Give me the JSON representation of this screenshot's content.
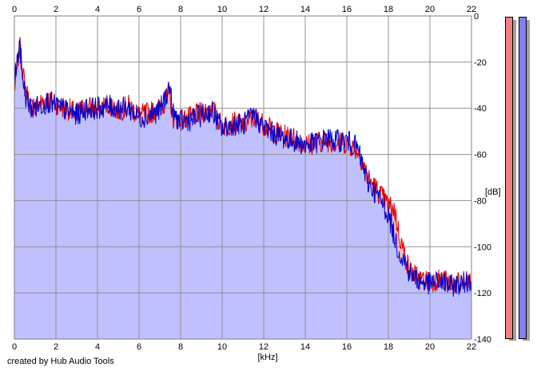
{
  "chart_data": {
    "type": "area",
    "xlabel": "[kHz]",
    "ylabel": "[dB]",
    "xlim": [
      0,
      22
    ],
    "ylim": [
      -140,
      0
    ],
    "x_ticks": [
      "0",
      "2",
      "4",
      "6",
      "8",
      "10",
      "12",
      "14",
      "16",
      "18",
      "20",
      "22"
    ],
    "y_ticks": [
      "0",
      "-20",
      "-40",
      "-60",
      "-80",
      "-100",
      "-120",
      "-140"
    ],
    "grid": true,
    "series": [
      {
        "color": "#e00000",
        "points": [
          [
            0,
            -32
          ],
          [
            0.1,
            -25
          ],
          [
            0.25,
            -14
          ],
          [
            0.5,
            -30
          ],
          [
            0.8,
            -40
          ],
          [
            1.2,
            -38
          ],
          [
            1.6,
            -36
          ],
          [
            2,
            -38
          ],
          [
            2.5,
            -40
          ],
          [
            3,
            -42
          ],
          [
            3.5,
            -39
          ],
          [
            4,
            -41
          ],
          [
            4.5,
            -38
          ],
          [
            5,
            -41
          ],
          [
            5.5,
            -39
          ],
          [
            6,
            -43
          ],
          [
            6.5,
            -42
          ],
          [
            7,
            -40
          ],
          [
            7.5,
            -34
          ],
          [
            7.6,
            -44
          ],
          [
            8,
            -45
          ],
          [
            8.5,
            -44
          ],
          [
            9,
            -42
          ],
          [
            9.5,
            -40
          ],
          [
            10,
            -48
          ],
          [
            10.5,
            -46
          ],
          [
            11,
            -48
          ],
          [
            11.5,
            -44
          ],
          [
            12,
            -47
          ],
          [
            12.5,
            -50
          ],
          [
            13,
            -52
          ],
          [
            13.5,
            -53
          ],
          [
            14,
            -56
          ],
          [
            14.5,
            -55
          ],
          [
            15,
            -54
          ],
          [
            15.5,
            -55
          ],
          [
            16,
            -55
          ],
          [
            16.5,
            -58
          ],
          [
            16.8,
            -64
          ],
          [
            17,
            -70
          ],
          [
            17.5,
            -76
          ],
          [
            18,
            -82
          ],
          [
            18.3,
            -84
          ],
          [
            18.5,
            -94
          ],
          [
            18.8,
            -104
          ],
          [
            19,
            -110
          ],
          [
            19.5,
            -114
          ],
          [
            20,
            -115
          ],
          [
            20.5,
            -114
          ],
          [
            21,
            -116
          ],
          [
            21.5,
            -116
          ],
          [
            22,
            -115
          ]
        ]
      },
      {
        "color": "#0000d0",
        "points": [
          [
            0,
            -28
          ],
          [
            0.1,
            -22
          ],
          [
            0.25,
            -12
          ],
          [
            0.5,
            -34
          ],
          [
            0.8,
            -40
          ],
          [
            1.2,
            -39
          ],
          [
            1.6,
            -37
          ],
          [
            2,
            -39
          ],
          [
            2.5,
            -41
          ],
          [
            3,
            -43
          ],
          [
            3.5,
            -40
          ],
          [
            4,
            -40
          ],
          [
            4.5,
            -39
          ],
          [
            5,
            -40
          ],
          [
            5.5,
            -40
          ],
          [
            6,
            -44
          ],
          [
            6.5,
            -43
          ],
          [
            7,
            -41
          ],
          [
            7.5,
            -30
          ],
          [
            7.6,
            -42
          ],
          [
            8,
            -46
          ],
          [
            8.5,
            -45
          ],
          [
            9,
            -43
          ],
          [
            9.5,
            -41
          ],
          [
            10,
            -49
          ],
          [
            10.5,
            -47
          ],
          [
            11,
            -47
          ],
          [
            11.5,
            -43
          ],
          [
            12,
            -48
          ],
          [
            12.5,
            -51
          ],
          [
            13,
            -53
          ],
          [
            13.5,
            -54
          ],
          [
            14,
            -56
          ],
          [
            14.5,
            -55
          ],
          [
            15,
            -53
          ],
          [
            15.5,
            -54
          ],
          [
            16,
            -54
          ],
          [
            16.5,
            -57
          ],
          [
            16.8,
            -66
          ],
          [
            17,
            -72
          ],
          [
            17.5,
            -78
          ],
          [
            18,
            -86
          ],
          [
            18.3,
            -96
          ],
          [
            18.5,
            -102
          ],
          [
            18.8,
            -106
          ],
          [
            19,
            -111
          ],
          [
            19.5,
            -115
          ],
          [
            20,
            -116
          ],
          [
            20.5,
            -115
          ],
          [
            21,
            -117
          ],
          [
            21.5,
            -116
          ],
          [
            22,
            -114
          ]
        ]
      }
    ],
    "fills": {
      "red": "#f4c4c4",
      "blue": "#c0c0ff"
    }
  },
  "level_meters": {
    "left": {
      "color": "#f08080",
      "level": 1.0
    },
    "right": {
      "color": "#8080f0",
      "level": 1.0
    }
  },
  "footer": {
    "credit": "created by Hub Audio Tools"
  }
}
